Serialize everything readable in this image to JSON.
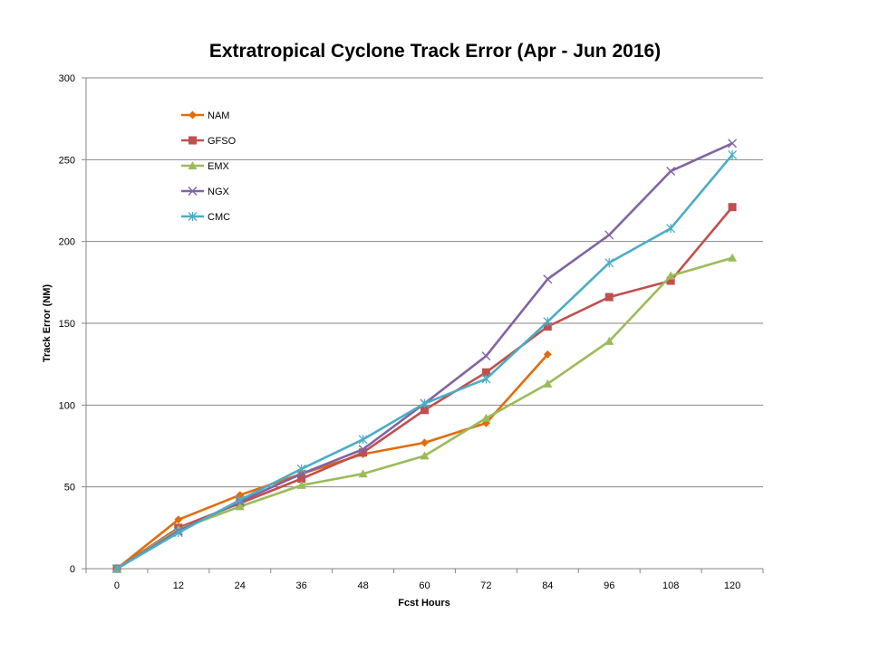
{
  "chart_data": {
    "type": "line",
    "title": "Extratropical Cyclone Track Error (Apr - Jun 2016)",
    "xlabel": "Fcst Hours",
    "ylabel": "Track Error  (NM)",
    "x": [
      0,
      12,
      24,
      36,
      48,
      60,
      72,
      84,
      96,
      108,
      120
    ],
    "x_tick_labels": [
      "0",
      "12",
      "24",
      "36",
      "48",
      "60",
      "72",
      "84",
      "96",
      "108",
      "120"
    ],
    "ylim": [
      0,
      300
    ],
    "y_ticks": [
      0,
      50,
      100,
      150,
      200,
      250,
      300
    ],
    "grid": "horizontal",
    "legend_position": "top-left",
    "series": [
      {
        "name": "NAM",
        "color": "#e36c0a",
        "marker": "diamond",
        "values": [
          0,
          30,
          45,
          58,
          70,
          77,
          89,
          131,
          null,
          null,
          null
        ]
      },
      {
        "name": "GFSO",
        "color": "#c0504d",
        "marker": "square",
        "values": [
          0,
          25,
          40,
          55,
          71,
          97,
          120,
          148,
          166,
          176,
          221
        ]
      },
      {
        "name": "EMX",
        "color": "#9bbb59",
        "marker": "triangle",
        "values": [
          0,
          24,
          38,
          51,
          58,
          69,
          92,
          113,
          139,
          179,
          190
        ]
      },
      {
        "name": "NGX",
        "color": "#8064a2",
        "marker": "x",
        "values": [
          0,
          23,
          41,
          58,
          73,
          101,
          130,
          177,
          204,
          243,
          260
        ]
      },
      {
        "name": "CMC",
        "color": "#4bacc6",
        "marker": "star",
        "values": [
          0,
          22,
          42,
          61,
          79,
          101,
          116,
          151,
          187,
          208,
          253
        ]
      }
    ]
  }
}
